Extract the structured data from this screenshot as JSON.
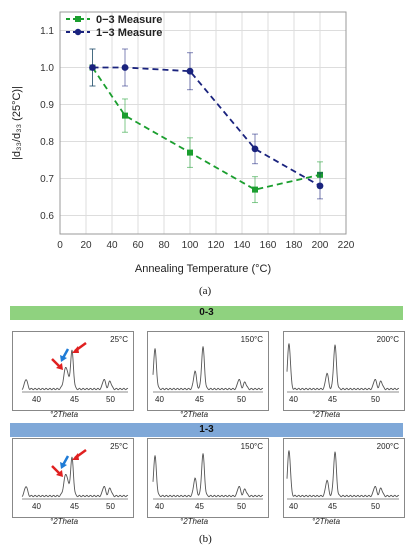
{
  "chart_data": [
    {
      "type": "line",
      "xlabel": "Annealing Temperature (°C)",
      "ylabel": "|d₃₃/d₃₃ (25°C)|",
      "xlim": [
        0,
        220
      ],
      "ylim": [
        0.55,
        1.15
      ],
      "xticks": [
        0,
        20,
        40,
        60,
        80,
        100,
        120,
        140,
        160,
        180,
        200,
        220
      ],
      "yticks": [
        0.6,
        0.7,
        0.8,
        0.9,
        1.0,
        1.1
      ],
      "grid": true,
      "legend_position": "top-left",
      "series": [
        {
          "name": "0−3 Measure",
          "color": "#1a9e2e",
          "marker": "square",
          "line_style": "dashed",
          "x": [
            25,
            50,
            100,
            150,
            200
          ],
          "y": [
            1.0,
            0.87,
            0.77,
            0.67,
            0.71
          ],
          "err": [
            0.05,
            0.045,
            0.04,
            0.035,
            0.035
          ]
        },
        {
          "name": "1−3 Measure",
          "color": "#1a237e",
          "marker": "circle",
          "line_style": "dashed",
          "x": [
            25,
            50,
            100,
            150,
            200
          ],
          "y": [
            1.0,
            1.0,
            0.99,
            0.78,
            0.68
          ],
          "err": [
            0.05,
            0.05,
            0.05,
            0.04,
            0.035
          ]
        }
      ]
    }
  ],
  "captions": {
    "a": "(a)",
    "b": "(b)"
  },
  "band_03": {
    "label": "0-3",
    "color": "#8fd27f"
  },
  "band_13": {
    "label": "1-3",
    "color": "#7fa8d8"
  },
  "xrd": {
    "row1": {
      "p1": {
        "temp": "25°C",
        "ticks": [
          "40",
          "45",
          "50"
        ],
        "xlabel": "°2Theta"
      },
      "p2": {
        "temp": "150°C",
        "ticks": [
          "40",
          "45",
          "50"
        ],
        "xlabel": "°2Theta"
      },
      "p3": {
        "temp": "200°C",
        "ticks": [
          "40",
          "45",
          "50"
        ],
        "xlabel": "°2Theta"
      }
    },
    "row2": {
      "p1": {
        "temp": "25°C",
        "ticks": [
          "40",
          "45",
          "50"
        ],
        "xlabel": "°2Theta"
      },
      "p2": {
        "temp": "150°C",
        "ticks": [
          "40",
          "45",
          "50"
        ],
        "xlabel": "°2Theta"
      },
      "p3": {
        "temp": "200°C",
        "ticks": [
          "40",
          "45",
          "50"
        ],
        "xlabel": "°2Theta"
      }
    }
  },
  "arrow_colors": {
    "red": "#e02020",
    "blue": "#1f7bd6"
  }
}
